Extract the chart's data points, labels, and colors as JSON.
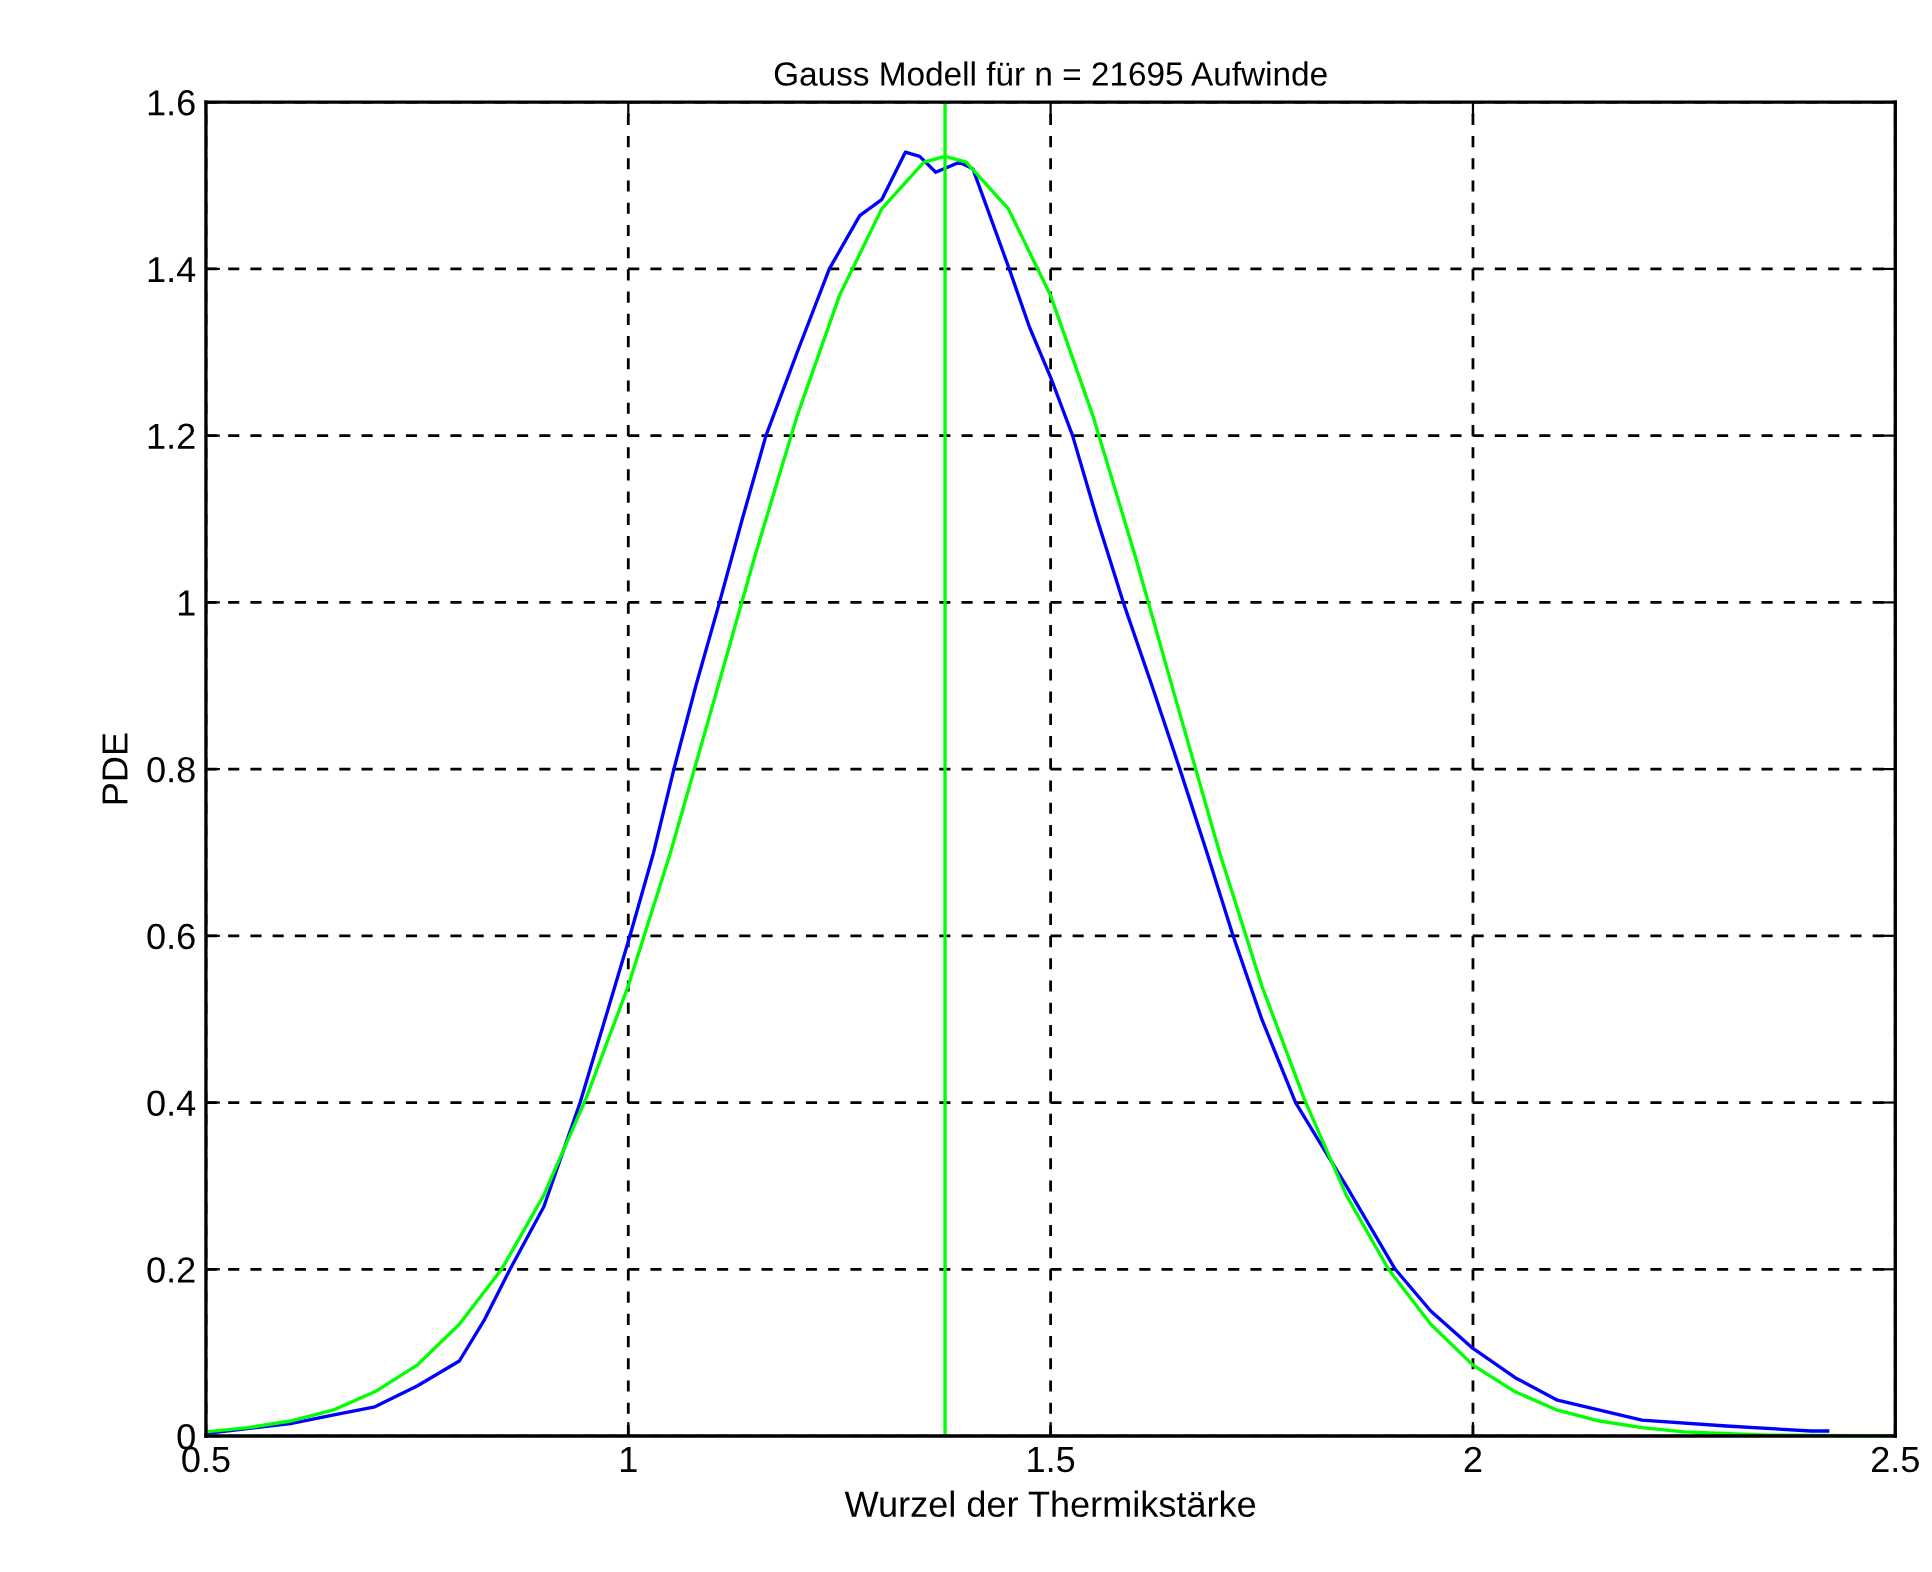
{
  "chart_data": {
    "type": "line",
    "title": "Gauss Modell für n = 21695 Aufwinde",
    "xlabel": "Wurzel der Thermikstärke",
    "ylabel": "PDE",
    "series": [
      {
        "color": "#0000ff",
        "x": [
          0.5,
          0.6,
          0.65,
          0.7,
          0.75,
          0.8,
          0.83,
          0.86,
          0.9,
          0.943,
          1.002,
          1.03,
          1.054,
          1.08,
          1.108,
          1.135,
          1.163,
          1.2,
          1.238,
          1.274,
          1.3,
          1.328,
          1.345,
          1.364,
          1.392,
          1.408,
          1.451,
          1.475,
          1.5,
          1.526,
          1.555,
          1.586,
          1.62,
          1.653,
          1.685,
          1.716,
          1.75,
          1.79,
          1.85,
          1.908,
          1.95,
          2.0,
          2.05,
          2.1,
          2.2,
          2.3,
          2.4,
          2.42
        ],
        "values": [
          0.003,
          0.015,
          0.025,
          0.035,
          0.06,
          0.09,
          0.14,
          0.2,
          0.275,
          0.4,
          0.6,
          0.7,
          0.8,
          0.9,
          1.0,
          1.1,
          1.2,
          1.3,
          1.4,
          1.464,
          1.483,
          1.54,
          1.535,
          1.516,
          1.528,
          1.52,
          1.4,
          1.33,
          1.27,
          1.2,
          1.1,
          1.0,
          0.9,
          0.8,
          0.7,
          0.6,
          0.5,
          0.4,
          0.3,
          0.2,
          0.15,
          0.105,
          0.07,
          0.043,
          0.019,
          0.012,
          0.006,
          0.006
        ]
      },
      {
        "color": "#00ff00",
        "x": [
          0.5,
          0.55,
          0.6,
          0.65,
          0.7,
          0.75,
          0.8,
          0.85,
          0.9,
          0.95,
          1.0,
          1.05,
          1.1,
          1.15,
          1.2,
          1.25,
          1.3,
          1.35,
          1.375,
          1.4,
          1.45,
          1.5,
          1.55,
          1.6,
          1.65,
          1.7,
          1.75,
          1.8,
          1.85,
          1.9,
          1.95,
          2.0,
          2.05,
          2.1,
          2.15,
          2.2,
          2.25,
          2.35,
          2.5
        ],
        "values": [
          0.005,
          0.01,
          0.018,
          0.031,
          0.053,
          0.085,
          0.134,
          0.2,
          0.289,
          0.405,
          0.54,
          0.7,
          0.877,
          1.056,
          1.224,
          1.368,
          1.472,
          1.528,
          1.535,
          1.528,
          1.472,
          1.368,
          1.224,
          1.056,
          0.877,
          0.7,
          0.54,
          0.405,
          0.289,
          0.2,
          0.134,
          0.085,
          0.053,
          0.031,
          0.018,
          0.01,
          0.005,
          0.001,
          0.0
        ]
      }
    ],
    "ref_lines": [
      {
        "axis": "x",
        "value": 1.375,
        "color": "#00ff00",
        "line_style": "solid"
      }
    ],
    "xlim": [
      0.5,
      2.5
    ],
    "xticks": [
      0.5,
      1,
      1.5,
      2,
      2.5
    ],
    "ylim": [
      0,
      1.6
    ],
    "yticks": [
      0,
      0.2,
      0.4,
      0.6,
      0.8,
      1,
      1.2,
      1.4,
      1.6
    ],
    "grid": true,
    "marker": "none",
    "line_style": "solid"
  }
}
